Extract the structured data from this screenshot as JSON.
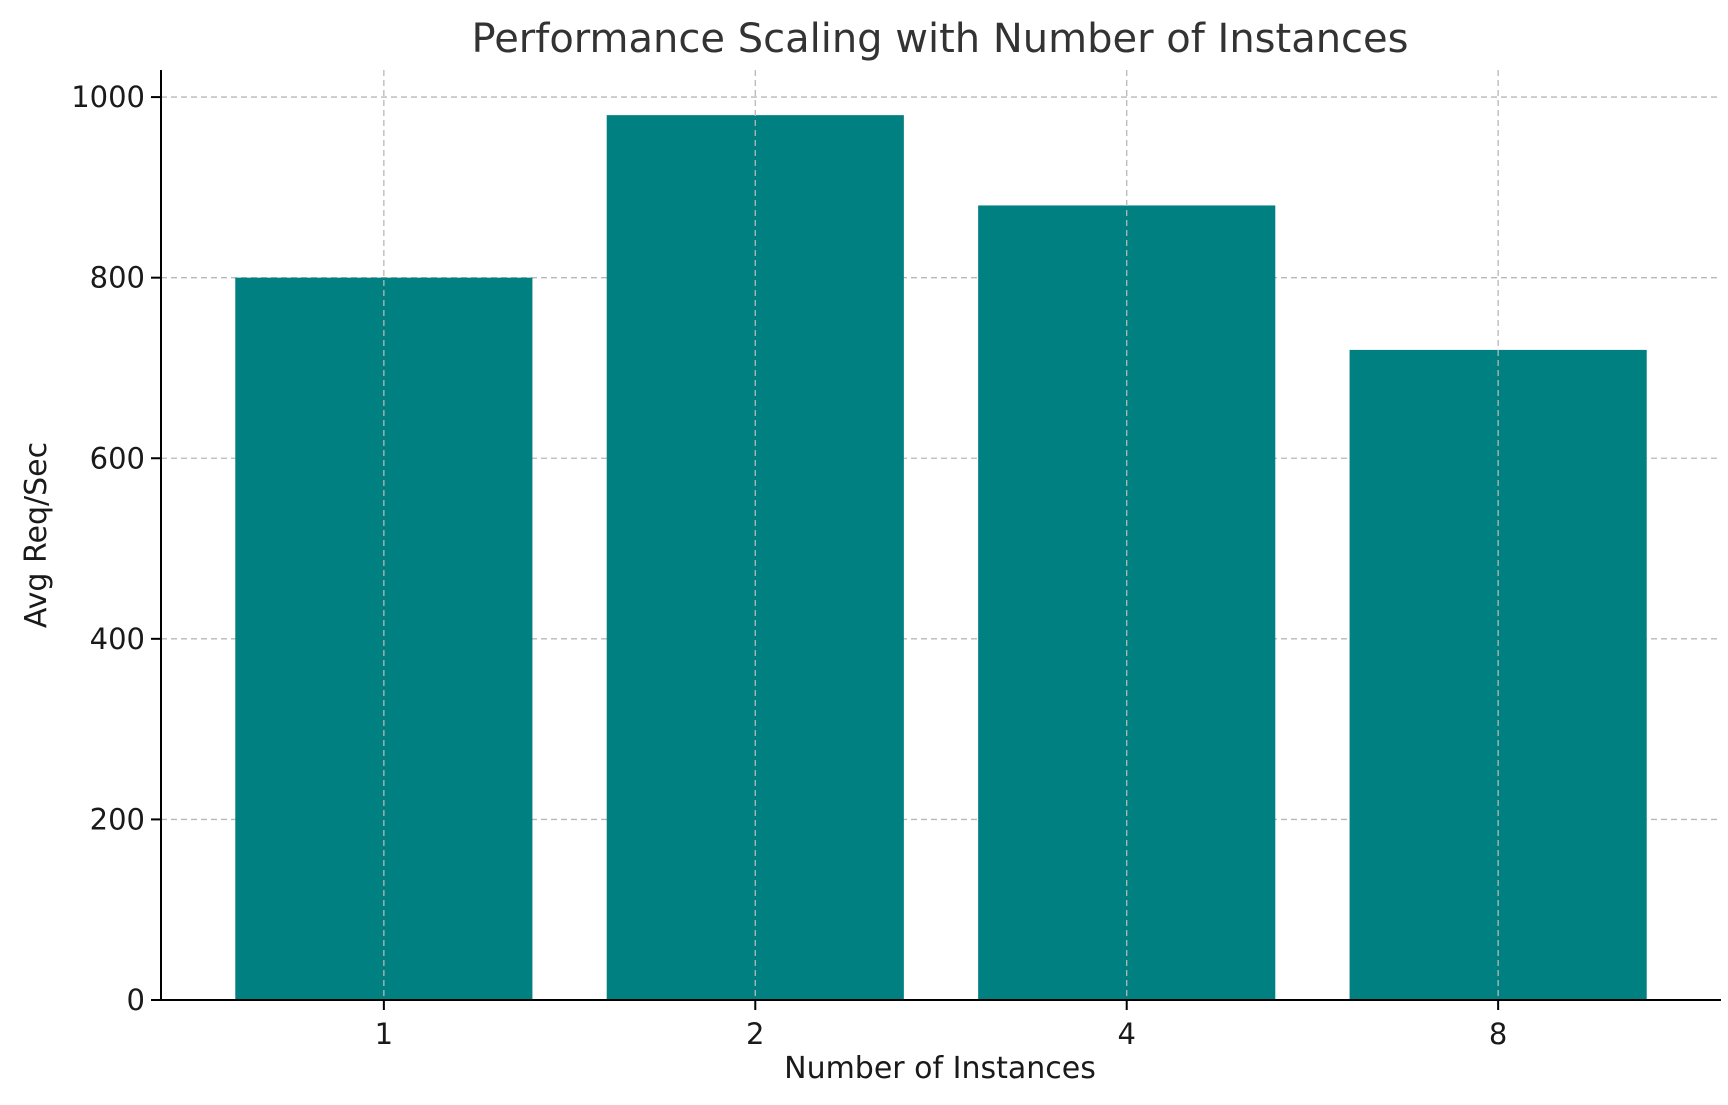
{
  "chart_data": {
    "type": "bar",
    "title": "Performance Scaling with Number of Instances",
    "xlabel": "Number of Instances",
    "ylabel": "Avg Req/Sec",
    "categories": [
      "1",
      "2",
      "4",
      "8"
    ],
    "values": [
      800,
      980,
      880,
      720
    ],
    "ylim": [
      0,
      1030
    ],
    "yticks": [
      0,
      200,
      400,
      600,
      800,
      1000
    ],
    "grid": true,
    "bar_color": "#008080",
    "grid_color": "#b8b8b8"
  }
}
